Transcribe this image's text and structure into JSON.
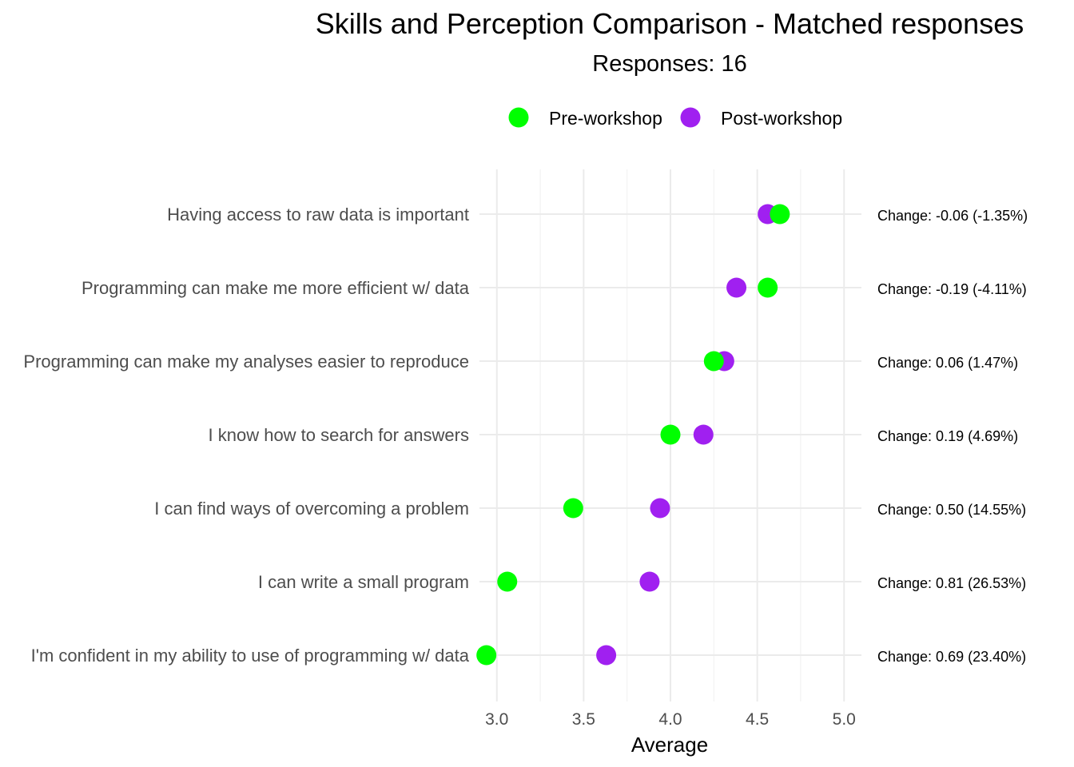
{
  "chart_data": {
    "type": "scatter",
    "title": "Skills and Perception Comparison - Matched responses",
    "subtitle": "Responses: 16",
    "xlabel": "Average",
    "ylabel": "",
    "xlim": [
      2.9,
      5.1
    ],
    "xticks": [
      3.0,
      3.5,
      4.0,
      4.5,
      5.0
    ],
    "xtick_labels": [
      "3.0",
      "3.5",
      "4.0",
      "4.5",
      "5.0"
    ],
    "legend_position": "top",
    "grid": true,
    "categories": [
      "Having access to raw data is important",
      "Programming can make me more efficient w/ data",
      "Programming can make my analyses easier to reproduce",
      "I know how to search for answers",
      "I can find ways of overcoming a problem",
      "I can write a small program",
      "I'm confident in my ability to use of programming w/ data"
    ],
    "series": [
      {
        "name": "Pre-workshop",
        "color": "#00ff00",
        "values": [
          4.63,
          4.56,
          4.25,
          4.0,
          3.44,
          3.06,
          2.94
        ]
      },
      {
        "name": "Post-workshop",
        "color": "#a020f0",
        "values": [
          4.56,
          4.38,
          4.31,
          4.19,
          3.94,
          3.88,
          3.63
        ]
      }
    ],
    "annotations": [
      "Change: -0.06 (-1.35%)",
      "Change: -0.19 (-4.11%)",
      "Change: 0.06 (1.47%)",
      "Change: 0.19 (4.69%)",
      "Change: 0.50 (14.55%)",
      "Change: 0.81 (26.53%)",
      "Change: 0.69 (23.40%)"
    ]
  }
}
